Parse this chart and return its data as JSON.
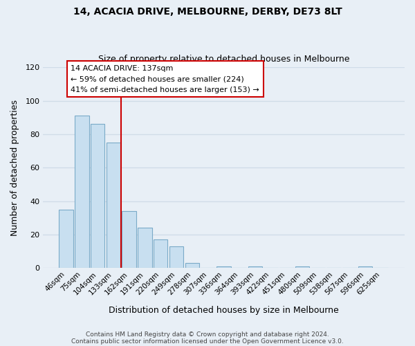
{
  "title": "14, ACACIA DRIVE, MELBOURNE, DERBY, DE73 8LT",
  "subtitle": "Size of property relative to detached houses in Melbourne",
  "xlabel": "Distribution of detached houses by size in Melbourne",
  "ylabel": "Number of detached properties",
  "bar_color": "#c8dff0",
  "bar_edge_color": "#7aaac8",
  "vline_color": "#cc0000",
  "categories": [
    "46sqm",
    "75sqm",
    "104sqm",
    "133sqm",
    "162sqm",
    "191sqm",
    "220sqm",
    "249sqm",
    "278sqm",
    "307sqm",
    "336sqm",
    "364sqm",
    "393sqm",
    "422sqm",
    "451sqm",
    "480sqm",
    "509sqm",
    "538sqm",
    "567sqm",
    "596sqm",
    "625sqm"
  ],
  "values": [
    35,
    91,
    86,
    75,
    34,
    24,
    17,
    13,
    3,
    0,
    1,
    0,
    1,
    0,
    0,
    1,
    0,
    0,
    0,
    1,
    0
  ],
  "ylim": [
    0,
    120
  ],
  "yticks": [
    0,
    20,
    40,
    60,
    80,
    100,
    120
  ],
  "annotation_title": "14 ACACIA DRIVE: 137sqm",
  "annotation_line1": "← 59% of detached houses are smaller (224)",
  "annotation_line2": "41% of semi-detached houses are larger (153) →",
  "annotation_box_color": "#ffffff",
  "annotation_box_edge": "#cc0000",
  "footer1": "Contains HM Land Registry data © Crown copyright and database right 2024.",
  "footer2": "Contains public sector information licensed under the Open Government Licence v3.0.",
  "background_color": "#e8eff6",
  "grid_color": "#d0dce8",
  "fig_width": 6.0,
  "fig_height": 5.0
}
